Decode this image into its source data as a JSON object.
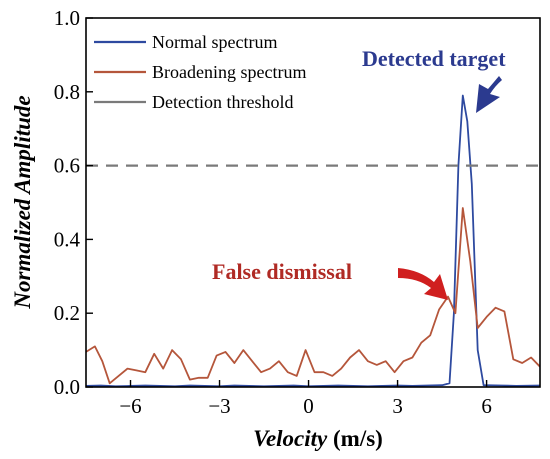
{
  "chart_data": {
    "type": "line",
    "xlabel_main": "Velocity",
    "xlabel_unit": " (m/s)",
    "ylabel": "Normalized Amplitude",
    "xlim": [
      -7.5,
      7.8
    ],
    "ylim": [
      0.0,
      1.0
    ],
    "xticks": [
      -6,
      -3,
      0,
      3,
      6
    ],
    "yticks": [
      0.0,
      0.2,
      0.4,
      0.6,
      0.8,
      1.0
    ],
    "xtick_labels": [
      "−6",
      "−3",
      "0",
      "3",
      "6"
    ],
    "ytick_labels": [
      "0.0",
      "0.2",
      "0.4",
      "0.6",
      "0.8",
      "1.0"
    ],
    "legend_position": "top-left",
    "grid": false,
    "series": [
      {
        "name": "Normal spectrum",
        "color": "#2e4aa0",
        "x": [
          -7.5,
          -7.0,
          -6.5,
          -6.0,
          -5.5,
          -5.0,
          -4.5,
          -4.0,
          -3.5,
          -3.0,
          -2.5,
          -2.0,
          -1.5,
          -1.0,
          -0.5,
          0.0,
          0.5,
          1.0,
          1.5,
          2.0,
          2.5,
          3.0,
          3.5,
          4.0,
          4.5,
          4.75,
          4.9,
          5.05,
          5.2,
          5.35,
          5.5,
          5.7,
          5.9,
          6.5,
          7.0,
          7.8
        ],
        "y": [
          0.003,
          0.004,
          0.002,
          0.003,
          0.004,
          0.003,
          0.002,
          0.004,
          0.003,
          0.002,
          0.004,
          0.003,
          0.002,
          0.003,
          0.004,
          0.002,
          0.003,
          0.004,
          0.003,
          0.002,
          0.003,
          0.004,
          0.003,
          0.004,
          0.005,
          0.01,
          0.2,
          0.6,
          0.79,
          0.72,
          0.55,
          0.1,
          0.005,
          0.004,
          0.003,
          0.004
        ]
      },
      {
        "name": "Broadening spectrum",
        "color": "#b5563b",
        "x": [
          -7.5,
          -7.2,
          -6.95,
          -6.7,
          -6.4,
          -6.1,
          -5.8,
          -5.5,
          -5.2,
          -4.9,
          -4.6,
          -4.3,
          -4.0,
          -3.7,
          -3.4,
          -3.1,
          -2.8,
          -2.5,
          -2.2,
          -1.9,
          -1.6,
          -1.3,
          -1.0,
          -0.7,
          -0.4,
          -0.1,
          0.2,
          0.5,
          0.8,
          1.1,
          1.4,
          1.7,
          2.0,
          2.3,
          2.6,
          2.9,
          3.2,
          3.5,
          3.8,
          4.1,
          4.4,
          4.7,
          4.95,
          5.2,
          5.45,
          5.7,
          6.0,
          6.3,
          6.6,
          6.9,
          7.2,
          7.5,
          7.8
        ],
        "y": [
          0.095,
          0.11,
          0.07,
          0.01,
          0.03,
          0.05,
          0.045,
          0.04,
          0.09,
          0.05,
          0.1,
          0.075,
          0.02,
          0.025,
          0.025,
          0.085,
          0.095,
          0.065,
          0.1,
          0.07,
          0.04,
          0.05,
          0.07,
          0.04,
          0.03,
          0.1,
          0.04,
          0.04,
          0.03,
          0.05,
          0.08,
          0.1,
          0.07,
          0.06,
          0.07,
          0.04,
          0.07,
          0.08,
          0.12,
          0.14,
          0.21,
          0.245,
          0.2,
          0.485,
          0.34,
          0.16,
          0.19,
          0.215,
          0.205,
          0.075,
          0.065,
          0.08,
          0.055
        ]
      },
      {
        "name": "Detection threshold",
        "color": "#7a7a7a",
        "dashed": true,
        "x": [
          -7.5,
          7.8
        ],
        "y": [
          0.6,
          0.6
        ]
      }
    ],
    "annotations": [
      {
        "text": "Detected target",
        "color": "#2b3a8f",
        "point": [
          5.25,
          0.79
        ]
      },
      {
        "text": "False dismissal",
        "color": "#b02a24",
        "point": [
          4.6,
          0.235
        ]
      }
    ]
  }
}
